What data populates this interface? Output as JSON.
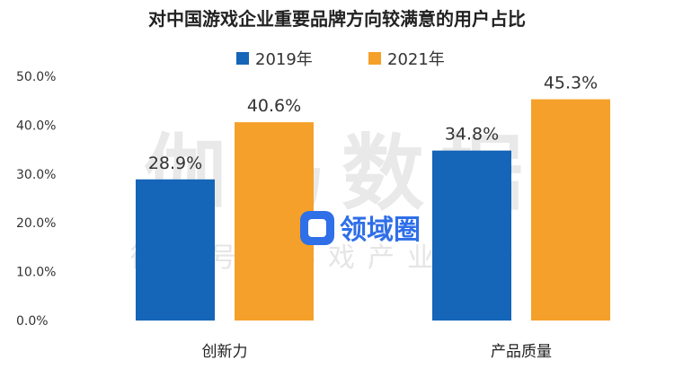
{
  "chart_data": {
    "type": "bar",
    "title": "对中国游戏企业重要品牌方向较满意的用户占比",
    "categories": [
      "创新力",
      "产品质量"
    ],
    "series": [
      {
        "name": "2019年",
        "values": [
          28.9,
          34.8
        ],
        "labels": [
          "28.9%",
          "34.8%"
        ]
      },
      {
        "name": "2021年",
        "values": [
          40.6,
          45.3
        ],
        "labels": [
          "40.6%",
          "45.3%"
        ]
      }
    ],
    "ylim": [
      0,
      50
    ],
    "yticks": [
      "0.0%",
      "10.0%",
      "20.0%",
      "30.0%",
      "40.0%",
      "50.0%"
    ],
    "grid": false,
    "legend_position": "top"
  },
  "colors": {
    "series_2019": "#1565b8",
    "series_2021": "#f5a02a",
    "text": "#333333"
  },
  "watermark": {
    "big": "伽马数据",
    "small": "微信号：游戏产业报告",
    "logo": "领域圈"
  }
}
